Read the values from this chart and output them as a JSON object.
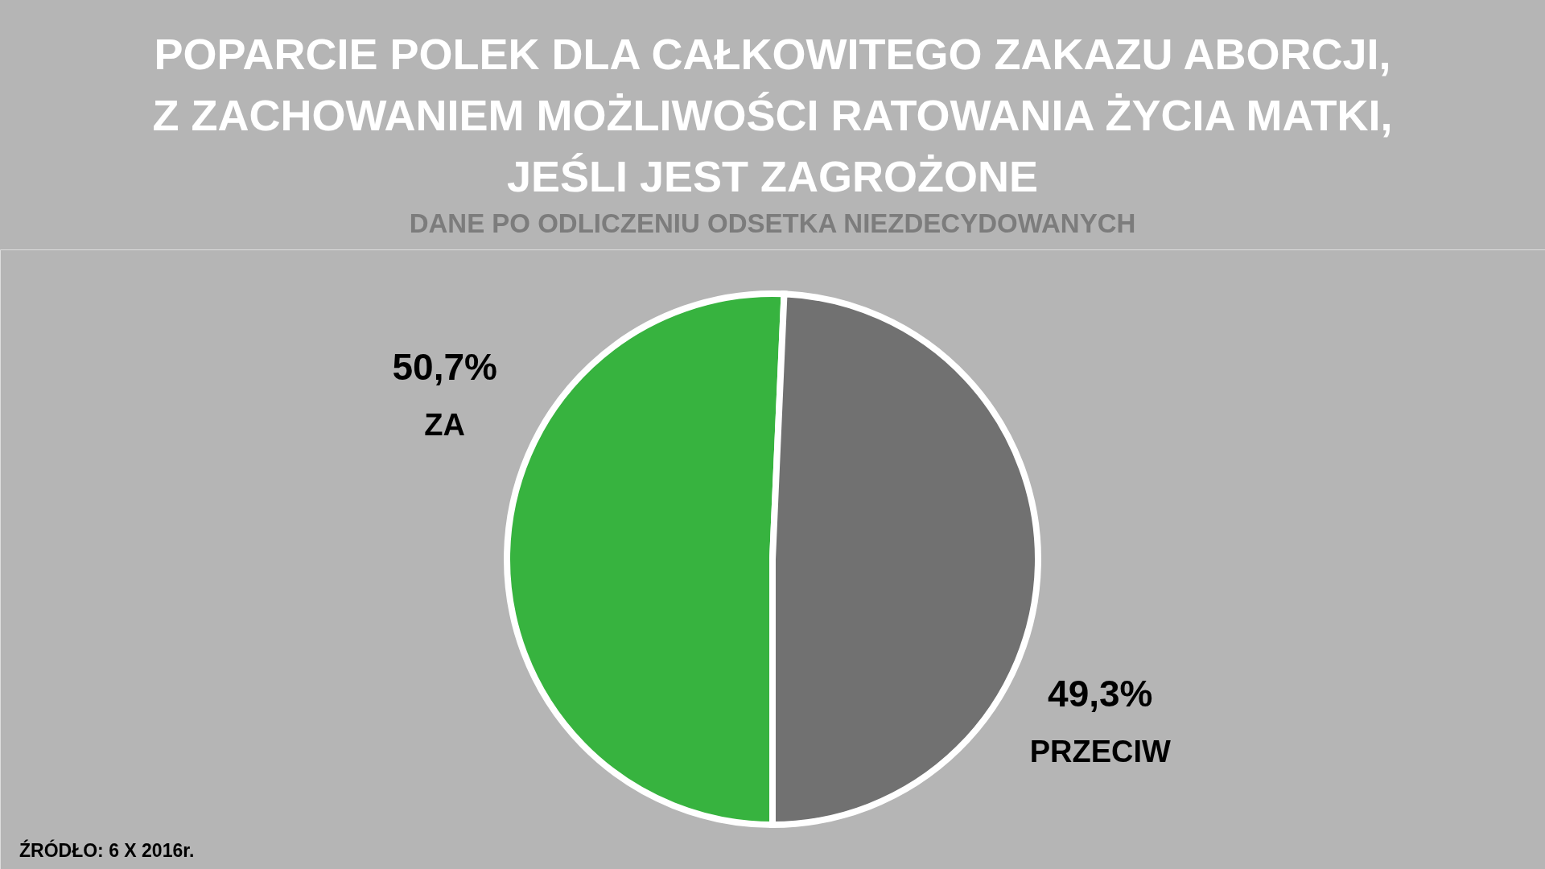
{
  "chart_data": {
    "type": "pie",
    "title": "POPARCIE POLEK DLA CAŁKOWITEGO ZAKAZU ABORCJI,\nZ ZACHOWANIEM MOŻLIWOŚCI RATOWANIA ŻYCIA MATKI,\nJEŚLI JEST ZAGROŻONE",
    "subtitle": "DANE PO ODLICZENIU ODSETKA NIEZDECYDOWANYCH",
    "categories": [
      "ZA",
      "PRZECIW"
    ],
    "values": [
      50.7,
      49.3
    ],
    "colors": [
      "#37b33f",
      "#717171"
    ],
    "value_labels": [
      "50,7%",
      "49,3%"
    ],
    "annotations": [
      "ŹRÓDŁO: 6 X 2016r."
    ],
    "legend": false
  }
}
